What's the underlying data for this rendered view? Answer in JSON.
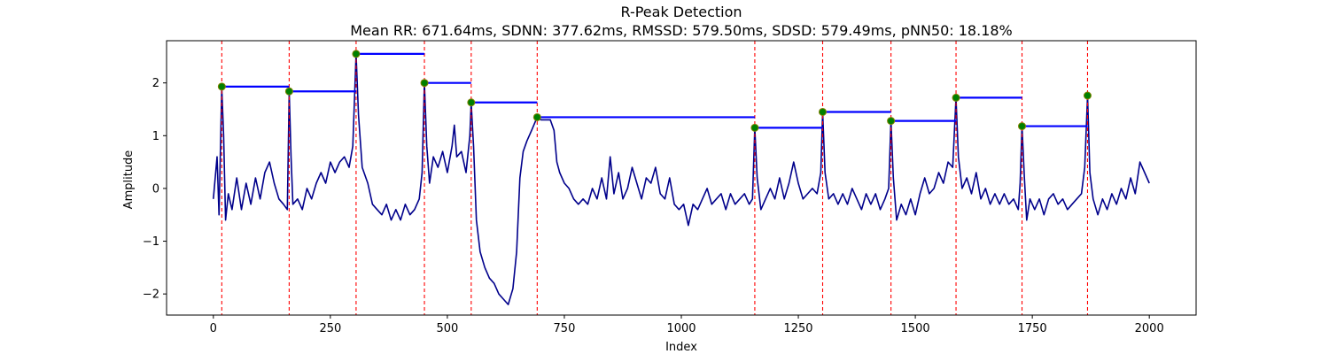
{
  "chart_data": {
    "type": "line",
    "title": "R-Peak Detection",
    "subtitle": "Mean RR: 671.64ms, SDNN: 377.62ms, RMSSD: 579.50ms, SDSD: 579.49ms, pNN50: 18.18%",
    "xlabel": "Index",
    "ylabel": "Amplitude",
    "xlim": [
      -100,
      2100
    ],
    "ylim": [
      -2.4,
      2.8
    ],
    "x_ticks": [
      0,
      250,
      500,
      750,
      1000,
      1250,
      1500,
      1750,
      2000
    ],
    "y_ticks": [
      -2,
      -1,
      0,
      1,
      2
    ],
    "grid": false,
    "colors": {
      "signal": "#00008b",
      "peak_lines": "#ff0000",
      "rr_segments": "#0000ff",
      "peak_markers": "#008000",
      "peak_marker_edge": "#808000"
    },
    "signal_anchor_points": [
      [
        0,
        -0.2
      ],
      [
        8,
        0.6
      ],
      [
        12,
        -0.5
      ],
      [
        18,
        1.9
      ],
      [
        22,
        1.0
      ],
      [
        26,
        -0.6
      ],
      [
        32,
        -0.1
      ],
      [
        40,
        -0.4
      ],
      [
        50,
        0.2
      ],
      [
        60,
        -0.4
      ],
      [
        70,
        0.1
      ],
      [
        80,
        -0.3
      ],
      [
        90,
        0.2
      ],
      [
        100,
        -0.2
      ],
      [
        110,
        0.3
      ],
      [
        120,
        0.5
      ],
      [
        130,
        0.1
      ],
      [
        140,
        -0.2
      ],
      [
        150,
        -0.3
      ],
      [
        158,
        -0.4
      ],
      [
        162,
        1.84
      ],
      [
        166,
        0.6
      ],
      [
        170,
        -0.3
      ],
      [
        180,
        -0.2
      ],
      [
        190,
        -0.4
      ],
      [
        200,
        0.0
      ],
      [
        210,
        -0.2
      ],
      [
        220,
        0.1
      ],
      [
        230,
        0.3
      ],
      [
        240,
        0.1
      ],
      [
        250,
        0.5
      ],
      [
        260,
        0.3
      ],
      [
        270,
        0.5
      ],
      [
        280,
        0.6
      ],
      [
        290,
        0.4
      ],
      [
        298,
        0.8
      ],
      [
        305,
        2.55
      ],
      [
        310,
        1.4
      ],
      [
        318,
        0.4
      ],
      [
        330,
        0.1
      ],
      [
        340,
        -0.3
      ],
      [
        350,
        -0.4
      ],
      [
        360,
        -0.5
      ],
      [
        370,
        -0.3
      ],
      [
        380,
        -0.6
      ],
      [
        390,
        -0.4
      ],
      [
        400,
        -0.6
      ],
      [
        410,
        -0.3
      ],
      [
        420,
        -0.5
      ],
      [
        430,
        -0.4
      ],
      [
        440,
        -0.2
      ],
      [
        446,
        0.3
      ],
      [
        451,
        2.0
      ],
      [
        456,
        0.8
      ],
      [
        462,
        0.1
      ],
      [
        470,
        0.6
      ],
      [
        480,
        0.4
      ],
      [
        490,
        0.7
      ],
      [
        500,
        0.3
      ],
      [
        510,
        0.8
      ],
      [
        515,
        1.2
      ],
      [
        520,
        0.6
      ],
      [
        530,
        0.7
      ],
      [
        540,
        0.3
      ],
      [
        548,
        1.0
      ],
      [
        551,
        1.62
      ],
      [
        556,
        0.8
      ],
      [
        562,
        -0.6
      ],
      [
        570,
        -1.2
      ],
      [
        580,
        -1.5
      ],
      [
        590,
        -1.7
      ],
      [
        600,
        -1.8
      ],
      [
        610,
        -2.0
      ],
      [
        620,
        -2.1
      ],
      [
        630,
        -2.2
      ],
      [
        640,
        -1.9
      ],
      [
        648,
        -1.2
      ],
      [
        655,
        0.2
      ],
      [
        662,
        0.7
      ],
      [
        670,
        0.9
      ],
      [
        680,
        1.1
      ],
      [
        692,
        1.35
      ],
      [
        700,
        1.3
      ],
      [
        710,
        1.3
      ],
      [
        720,
        1.3
      ],
      [
        728,
        1.1
      ],
      [
        734,
        0.5
      ],
      [
        740,
        0.3
      ],
      [
        750,
        0.1
      ],
      [
        760,
        0.0
      ],
      [
        770,
        -0.2
      ],
      [
        780,
        -0.3
      ],
      [
        790,
        -0.2
      ],
      [
        800,
        -0.3
      ],
      [
        810,
        0.0
      ],
      [
        820,
        -0.2
      ],
      [
        830,
        0.2
      ],
      [
        840,
        -0.2
      ],
      [
        848,
        0.6
      ],
      [
        856,
        -0.1
      ],
      [
        866,
        0.3
      ],
      [
        875,
        -0.2
      ],
      [
        885,
        0.0
      ],
      [
        895,
        0.4
      ],
      [
        905,
        0.1
      ],
      [
        915,
        -0.2
      ],
      [
        925,
        0.2
      ],
      [
        935,
        0.1
      ],
      [
        945,
        0.4
      ],
      [
        955,
        -0.1
      ],
      [
        965,
        -0.2
      ],
      [
        975,
        0.2
      ],
      [
        985,
        -0.3
      ],
      [
        995,
        -0.4
      ],
      [
        1005,
        -0.3
      ],
      [
        1015,
        -0.7
      ],
      [
        1025,
        -0.3
      ],
      [
        1035,
        -0.4
      ],
      [
        1045,
        -0.2
      ],
      [
        1055,
        0.0
      ],
      [
        1065,
        -0.3
      ],
      [
        1075,
        -0.2
      ],
      [
        1085,
        -0.1
      ],
      [
        1095,
        -0.4
      ],
      [
        1105,
        -0.1
      ],
      [
        1115,
        -0.3
      ],
      [
        1125,
        -0.2
      ],
      [
        1135,
        -0.1
      ],
      [
        1145,
        -0.3
      ],
      [
        1152,
        -0.2
      ],
      [
        1157,
        1.15
      ],
      [
        1162,
        0.2
      ],
      [
        1170,
        -0.4
      ],
      [
        1180,
        -0.2
      ],
      [
        1190,
        0.0
      ],
      [
        1200,
        -0.2
      ],
      [
        1210,
        0.2
      ],
      [
        1220,
        -0.2
      ],
      [
        1230,
        0.1
      ],
      [
        1240,
        0.5
      ],
      [
        1250,
        0.1
      ],
      [
        1260,
        -0.2
      ],
      [
        1270,
        -0.1
      ],
      [
        1280,
        0.0
      ],
      [
        1290,
        -0.1
      ],
      [
        1298,
        0.3
      ],
      [
        1302,
        1.45
      ],
      [
        1307,
        0.3
      ],
      [
        1315,
        -0.2
      ],
      [
        1325,
        -0.1
      ],
      [
        1335,
        -0.3
      ],
      [
        1345,
        -0.1
      ],
      [
        1355,
        -0.3
      ],
      [
        1365,
        0.0
      ],
      [
        1375,
        -0.2
      ],
      [
        1385,
        -0.4
      ],
      [
        1395,
        -0.1
      ],
      [
        1405,
        -0.3
      ],
      [
        1415,
        -0.1
      ],
      [
        1425,
        -0.4
      ],
      [
        1435,
        -0.2
      ],
      [
        1443,
        0.0
      ],
      [
        1448,
        1.28
      ],
      [
        1453,
        0.2
      ],
      [
        1460,
        -0.6
      ],
      [
        1470,
        -0.3
      ],
      [
        1480,
        -0.5
      ],
      [
        1490,
        -0.2
      ],
      [
        1500,
        -0.5
      ],
      [
        1510,
        -0.1
      ],
      [
        1520,
        0.2
      ],
      [
        1530,
        -0.1
      ],
      [
        1540,
        0.0
      ],
      [
        1550,
        0.3
      ],
      [
        1560,
        0.1
      ],
      [
        1570,
        0.5
      ],
      [
        1580,
        0.4
      ],
      [
        1587,
        1.72
      ],
      [
        1592,
        0.6
      ],
      [
        1600,
        0.0
      ],
      [
        1610,
        0.2
      ],
      [
        1620,
        -0.1
      ],
      [
        1630,
        0.3
      ],
      [
        1640,
        -0.2
      ],
      [
        1650,
        0.0
      ],
      [
        1660,
        -0.3
      ],
      [
        1670,
        -0.1
      ],
      [
        1680,
        -0.3
      ],
      [
        1690,
        -0.1
      ],
      [
        1700,
        -0.3
      ],
      [
        1710,
        -0.2
      ],
      [
        1720,
        -0.4
      ],
      [
        1724,
        0.1
      ],
      [
        1728,
        1.18
      ],
      [
        1733,
        0.2
      ],
      [
        1738,
        -0.6
      ],
      [
        1745,
        -0.2
      ],
      [
        1755,
        -0.4
      ],
      [
        1765,
        -0.2
      ],
      [
        1775,
        -0.5
      ],
      [
        1785,
        -0.2
      ],
      [
        1795,
        -0.1
      ],
      [
        1805,
        -0.3
      ],
      [
        1815,
        -0.2
      ],
      [
        1825,
        -0.4
      ],
      [
        1835,
        -0.3
      ],
      [
        1845,
        -0.2
      ],
      [
        1855,
        -0.1
      ],
      [
        1862,
        0.4
      ],
      [
        1868,
        1.76
      ],
      [
        1873,
        0.3
      ],
      [
        1880,
        -0.2
      ],
      [
        1890,
        -0.5
      ],
      [
        1900,
        -0.2
      ],
      [
        1910,
        -0.4
      ],
      [
        1920,
        -0.1
      ],
      [
        1930,
        -0.3
      ],
      [
        1940,
        0.0
      ],
      [
        1950,
        -0.2
      ],
      [
        1960,
        0.2
      ],
      [
        1970,
        -0.1
      ],
      [
        1980,
        0.5
      ],
      [
        1990,
        0.3
      ],
      [
        2000,
        0.1
      ]
    ],
    "r_peaks": [
      {
        "x": 18,
        "y": 1.93
      },
      {
        "x": 162,
        "y": 1.84
      },
      {
        "x": 305,
        "y": 2.55
      },
      {
        "x": 451,
        "y": 2.0
      },
      {
        "x": 551,
        "y": 1.63
      },
      {
        "x": 692,
        "y": 1.35
      },
      {
        "x": 1157,
        "y": 1.15
      },
      {
        "x": 1302,
        "y": 1.45
      },
      {
        "x": 1448,
        "y": 1.28
      },
      {
        "x": 1587,
        "y": 1.72
      },
      {
        "x": 1728,
        "y": 1.18
      },
      {
        "x": 1868,
        "y": 1.76
      }
    ]
  }
}
